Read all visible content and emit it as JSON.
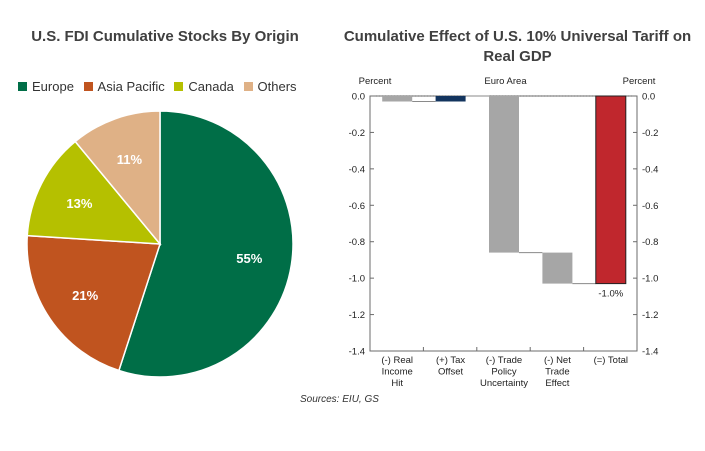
{
  "chart_data": [
    {
      "type": "pie",
      "title": "U.S. FDI Cumulative Stocks By Origin",
      "labels": [
        "Europe",
        "Asia Pacific",
        "Canada",
        "Others"
      ],
      "values": [
        55,
        21,
        13,
        11
      ],
      "data_labels": [
        "55%",
        "21%",
        "13%",
        "11%"
      ],
      "colors": [
        "#006e47",
        "#c0541f",
        "#b5c000",
        "#dfb186"
      ],
      "legend": "top"
    },
    {
      "type": "bar",
      "subtype": "waterfall",
      "title": "Cumulative Effect of U.S. 10% Universal Tariff on Real GDP",
      "categories": [
        "(-) Real Income Hit",
        "(+) Tax Offset",
        "(-) Trade Policy Uncertainty",
        "(-) Net Trade Effect",
        "(=) Total"
      ],
      "category_lines": [
        [
          "(-) Real",
          "Income",
          "Hit"
        ],
        [
          "(+) Tax",
          "Offset"
        ],
        [
          "(-) Trade",
          "Policy",
          "Uncertainty"
        ],
        [
          "(-) Net",
          "Trade",
          "Effect"
        ],
        [
          "(=) Total"
        ]
      ],
      "start": [
        0.0,
        -0.03,
        0.0,
        -0.86,
        0.0
      ],
      "end": [
        -0.03,
        0.0,
        -0.86,
        -1.03,
        -1.03
      ],
      "colors": [
        "#a6a6a6",
        "#13345e",
        "#a6a6a6",
        "#a6a6a6",
        "#c0272d"
      ],
      "data_label": "-1.0%",
      "top_label": "Euro Area",
      "ylabel_left": "Percent",
      "ylabel_right": "Percent",
      "ylim": [
        -1.4,
        0.0
      ],
      "yticks": [
        "0.0",
        "-0.2",
        "-0.4",
        "-0.6",
        "-0.8",
        "-1.0",
        "-1.2",
        "-1.4"
      ],
      "grid": false
    }
  ],
  "footer": {
    "sources": "Sources: EIU, GS"
  }
}
